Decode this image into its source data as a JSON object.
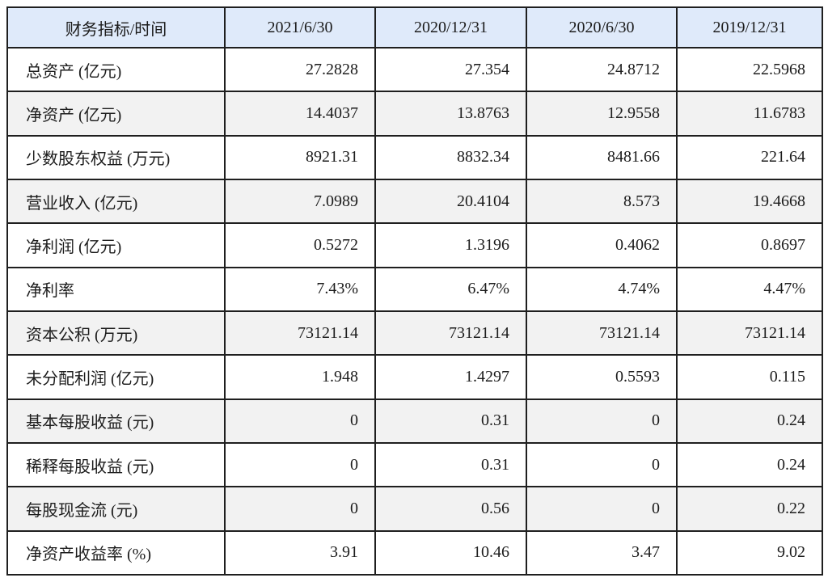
{
  "table": {
    "columns": [
      "财务指标/时间",
      "2021/6/30",
      "2020/12/31",
      "2020/6/30",
      "2019/12/31"
    ],
    "rows": [
      {
        "label": "总资产 (亿元)",
        "values": [
          "27.2828",
          "27.354",
          "24.8712",
          "22.5968"
        ],
        "shaded": false
      },
      {
        "label": "净资产 (亿元)",
        "values": [
          "14.4037",
          "13.8763",
          "12.9558",
          "11.6783"
        ],
        "shaded": true
      },
      {
        "label": "少数股东权益 (万元)",
        "values": [
          "8921.31",
          "8832.34",
          "8481.66",
          "221.64"
        ],
        "shaded": false
      },
      {
        "label": "营业收入 (亿元)",
        "values": [
          "7.0989",
          "20.4104",
          "8.573",
          "19.4668"
        ],
        "shaded": true
      },
      {
        "label": "净利润 (亿元)",
        "values": [
          "0.5272",
          "1.3196",
          "0.4062",
          "0.8697"
        ],
        "shaded": false
      },
      {
        "label": "净利率",
        "values": [
          "7.43%",
          "6.47%",
          "4.74%",
          "4.47%"
        ],
        "shaded": false
      },
      {
        "label": "资本公积 (万元)",
        "values": [
          "73121.14",
          "73121.14",
          "73121.14",
          "73121.14"
        ],
        "shaded": true
      },
      {
        "label": "未分配利润 (亿元)",
        "values": [
          "1.948",
          "1.4297",
          "0.5593",
          "0.115"
        ],
        "shaded": false
      },
      {
        "label": "基本每股收益 (元)",
        "values": [
          "0",
          "0.31",
          "0",
          "0.24"
        ],
        "shaded": true
      },
      {
        "label": "稀释每股收益 (元)",
        "values": [
          "0",
          "0.31",
          "0",
          "0.24"
        ],
        "shaded": false
      },
      {
        "label": "每股现金流 (元)",
        "values": [
          "0",
          "0.56",
          "0",
          "0.22"
        ],
        "shaded": true
      },
      {
        "label": "净资产收益率 (%)",
        "values": [
          "3.91",
          "10.46",
          "3.47",
          "9.02"
        ],
        "shaded": false
      }
    ],
    "colors": {
      "header_bg": "#dfeafa",
      "shaded_row_bg": "#f2f2f2",
      "row_bg": "#ffffff",
      "border": "#1f1f1f",
      "text": "#1c1c1c"
    }
  }
}
